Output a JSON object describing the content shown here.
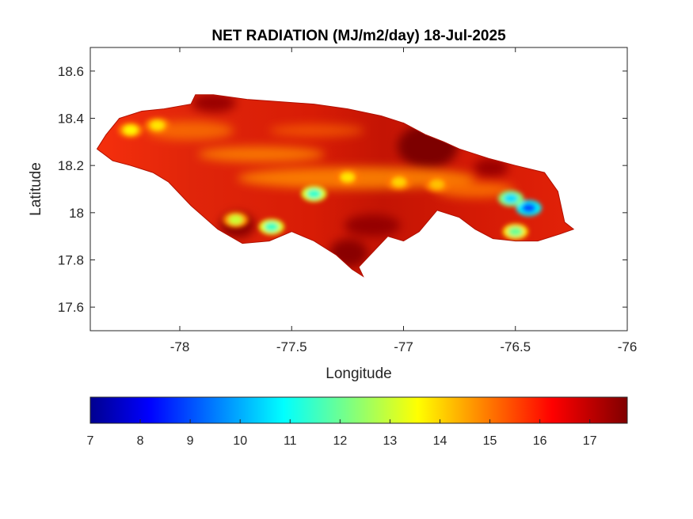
{
  "chart_data": {
    "type": "heatmap",
    "title": "NET RADIATION (MJ/m2/day) 18-Jul-2025",
    "xlabel": "Longitude",
    "ylabel": "Latitude",
    "xlim": [
      -78.4,
      -76
    ],
    "ylim": [
      17.5,
      18.7
    ],
    "x_ticks": [
      -78,
      -77.5,
      -77,
      -76.5,
      -76
    ],
    "x_tick_labels": [
      "-78",
      "-77.5",
      "-77",
      "-76.5",
      "-76"
    ],
    "y_ticks": [
      17.6,
      17.8,
      18,
      18.2,
      18.4,
      18.6
    ],
    "y_tick_labels": [
      "17.6",
      "17.8",
      "18",
      "18.2",
      "18.4",
      "18.6"
    ],
    "grid": false,
    "colormap": "jet",
    "colorbar": {
      "orientation": "horizontal",
      "location": "bottom",
      "range": [
        7,
        17.75
      ],
      "ticks": [
        7,
        8,
        9,
        10,
        11,
        12,
        13,
        14,
        15,
        16,
        17
      ],
      "tick_labels": [
        "7",
        "8",
        "9",
        "10",
        "11",
        "12",
        "13",
        "14",
        "15",
        "16",
        "17"
      ],
      "stops": [
        "#00008f",
        "#0000ff",
        "#00ffff",
        "#ffff00",
        "#ff0000",
        "#800000"
      ]
    },
    "region_outline": [
      [
        -78.37,
        18.27
      ],
      [
        -78.33,
        18.33
      ],
      [
        -78.27,
        18.4
      ],
      [
        -78.17,
        18.43
      ],
      [
        -78.07,
        18.44
      ],
      [
        -77.95,
        18.46
      ],
      [
        -77.93,
        18.5
      ],
      [
        -77.85,
        18.5
      ],
      [
        -77.7,
        18.48
      ],
      [
        -77.55,
        18.47
      ],
      [
        -77.4,
        18.46
      ],
      [
        -77.25,
        18.44
      ],
      [
        -77.1,
        18.41
      ],
      [
        -77.0,
        18.38
      ],
      [
        -76.9,
        18.33
      ],
      [
        -76.82,
        18.3
      ],
      [
        -76.75,
        18.27
      ],
      [
        -76.62,
        18.23
      ],
      [
        -76.5,
        18.2
      ],
      [
        -76.37,
        18.17
      ],
      [
        -76.31,
        18.09
      ],
      [
        -76.28,
        17.96
      ],
      [
        -76.24,
        17.93
      ],
      [
        -76.3,
        17.91
      ],
      [
        -76.4,
        17.88
      ],
      [
        -76.5,
        17.88
      ],
      [
        -76.6,
        17.89
      ],
      [
        -76.68,
        17.93
      ],
      [
        -76.75,
        17.98
      ],
      [
        -76.85,
        18.01
      ],
      [
        -76.93,
        17.92
      ],
      [
        -77.0,
        17.88
      ],
      [
        -77.07,
        17.9
      ],
      [
        -77.15,
        17.82
      ],
      [
        -77.2,
        17.77
      ],
      [
        -77.18,
        17.73
      ],
      [
        -77.23,
        17.76
      ],
      [
        -77.3,
        17.82
      ],
      [
        -77.4,
        17.88
      ],
      [
        -77.5,
        17.92
      ],
      [
        -77.6,
        17.88
      ],
      [
        -77.72,
        17.87
      ],
      [
        -77.83,
        17.93
      ],
      [
        -77.95,
        18.03
      ],
      [
        -78.05,
        18.13
      ],
      [
        -78.12,
        18.17
      ],
      [
        -78.22,
        18.2
      ],
      [
        -78.3,
        18.22
      ],
      [
        -78.37,
        18.27
      ]
    ],
    "hotspots": [
      {
        "lon": -78.22,
        "lat": 18.35,
        "value": 13.6
      },
      {
        "lon": -78.1,
        "lat": 18.37,
        "value": 13.8
      },
      {
        "lon": -77.75,
        "lat": 17.97,
        "value": 13.0
      },
      {
        "lon": -77.59,
        "lat": 17.94,
        "value": 11.5
      },
      {
        "lon": -77.4,
        "lat": 18.08,
        "value": 11.4
      },
      {
        "lon": -76.44,
        "lat": 18.02,
        "value": 9.0
      },
      {
        "lon": -76.52,
        "lat": 18.06,
        "value": 10.5
      },
      {
        "lon": -76.5,
        "lat": 17.92,
        "value": 12.0
      },
      {
        "lon": -77.25,
        "lat": 18.15,
        "value": 13.8
      },
      {
        "lon": -77.02,
        "lat": 18.13,
        "value": 14.0
      },
      {
        "lon": -76.85,
        "lat": 18.12,
        "value": 14.2
      }
    ]
  }
}
